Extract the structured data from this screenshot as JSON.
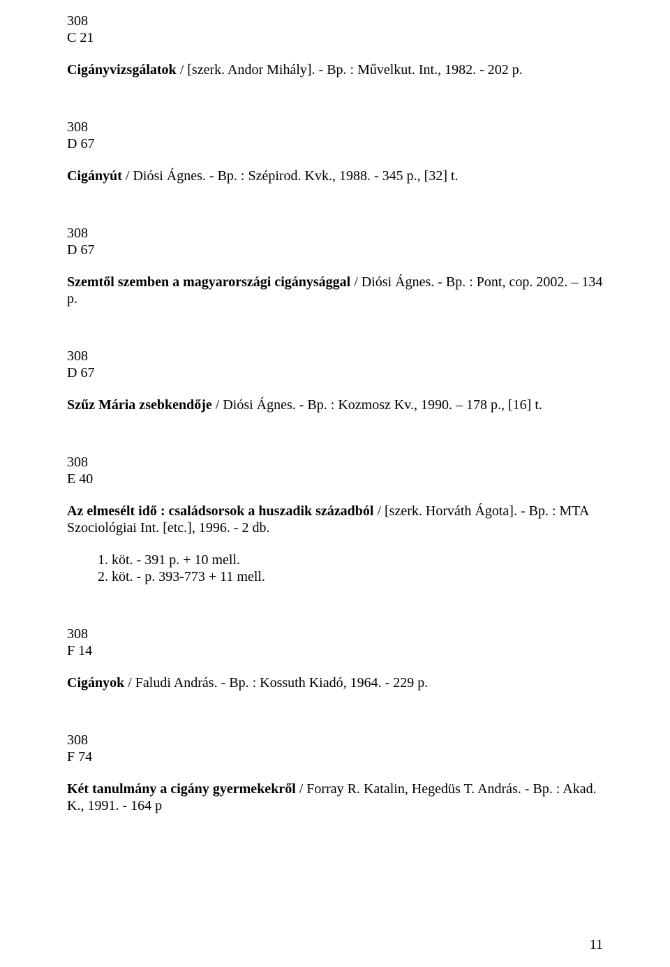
{
  "page_number": "11",
  "entries": [
    {
      "code1": "308",
      "code2": "C 21",
      "title_bold": "Cigányvizsgálatok",
      "title_rest": " / [szerk. Andor Mihály]. - Bp. : Művelkut. Int., 1982. - 202 p."
    },
    {
      "code1": "308",
      "code2": "D 67",
      "title_bold": "Cigányút",
      "title_rest": " / Diósi Ágnes. - Bp. : Szépirod. Kvk., 1988. - 345 p., [32] t."
    },
    {
      "code1": "308",
      "code2": "D 67",
      "title_bold": "Szemtől szemben a magyarországi cigánysággal",
      "title_rest": " / Diósi Ágnes. - Bp. : Pont, cop. 2002. – 134 p."
    },
    {
      "code1": "308",
      "code2": "D 67",
      "title_bold": "Szűz Mária zsebkendője",
      "title_rest": " / Diósi Ágnes. - Bp. : Kozmosz Kv., 1990. – 178 p., [16] t."
    },
    {
      "code1": "308",
      "code2": "E 40",
      "title_bold": "Az elmesélt idő : családsorsok a huszadik századból",
      "title_rest": " / [szerk. Horváth Ágota]. - Bp. : MTA Szociológiai Int. [etc.], 1996. - 2 db.",
      "volumes": [
        {
          "num": "1.",
          "text": "  köt. - 391 p. + 10 mell."
        },
        {
          "num": "",
          "text": "2. köt. - p. 393-773 + 11 mell."
        }
      ]
    },
    {
      "code1": "308",
      "code2": "F 14",
      "title_bold": "Cigányok",
      "title_rest": " / Faludi András. - Bp. : Kossuth Kiadó, 1964. - 229 p."
    },
    {
      "code1": "308",
      "code2": "F 74",
      "title_bold": "Két tanulmány a cigány gyermekekről",
      "title_rest": " / Forray R. Katalin, Hegedüs T. András. - Bp. : Akad. K., 1991. - 164 p"
    }
  ]
}
